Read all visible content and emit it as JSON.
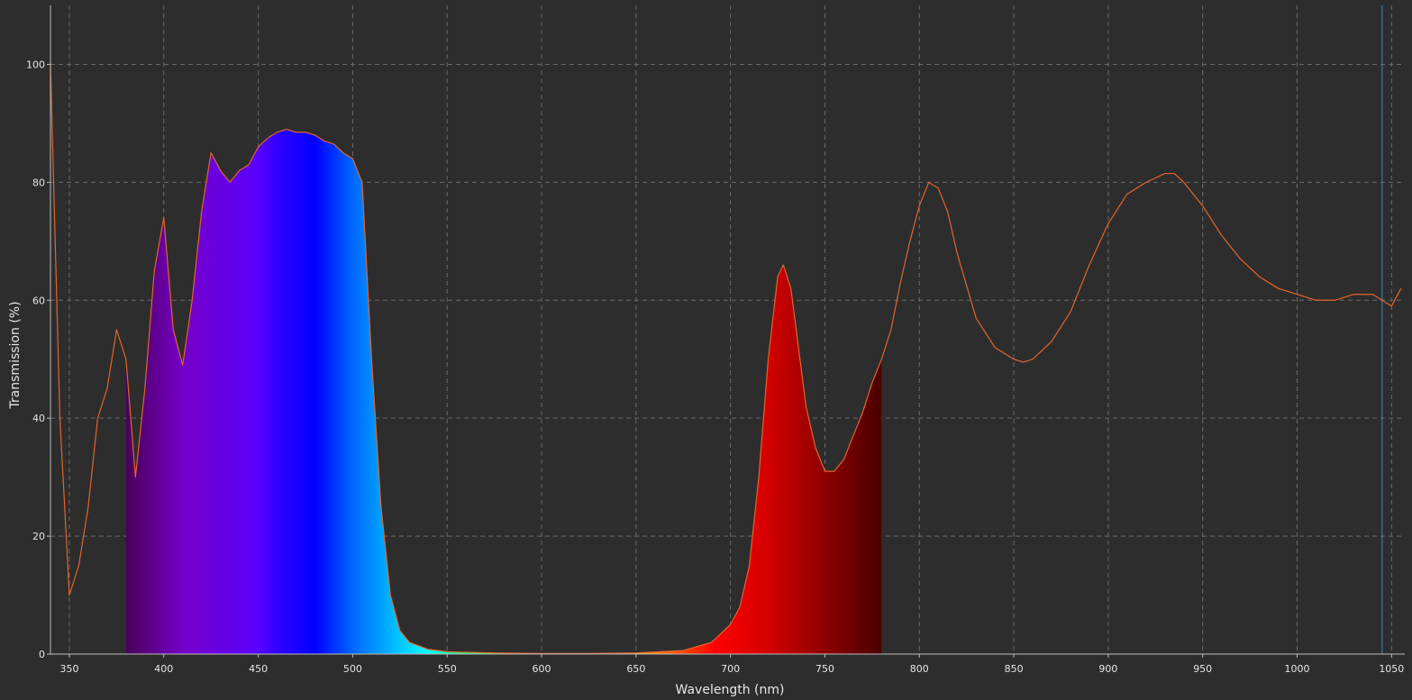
{
  "chart_data": {
    "type": "area",
    "title": "",
    "xlabel": "Wavelength (nm)",
    "ylabel": "Transmission (%)",
    "xlim": [
      340,
      1057
    ],
    "ylim": [
      0,
      110
    ],
    "x_ticks": [
      350,
      400,
      450,
      500,
      550,
      600,
      650,
      700,
      750,
      800,
      850,
      900,
      950,
      1000,
      1050
    ],
    "y_ticks": [
      0,
      20,
      40,
      60,
      80,
      100
    ],
    "grid": true,
    "visible_spectrum_fill": [
      380,
      780
    ],
    "marker_line_x": 1045,
    "series": [
      {
        "color": "#e2652c",
        "x": [
          340,
          345,
          350,
          355,
          360,
          365,
          370,
          375,
          380,
          385,
          390,
          395,
          400,
          405,
          410,
          415,
          420,
          425,
          430,
          435,
          440,
          445,
          450,
          455,
          460,
          465,
          470,
          475,
          480,
          485,
          490,
          495,
          500,
          505,
          510,
          515,
          520,
          525,
          530,
          540,
          550,
          575,
          600,
          625,
          650,
          675,
          690,
          700,
          705,
          710,
          715,
          720,
          725,
          728,
          732,
          736,
          740,
          745,
          750,
          755,
          760,
          765,
          770,
          775,
          780,
          785,
          790,
          795,
          800,
          805,
          810,
          815,
          820,
          830,
          840,
          850,
          855,
          860,
          870,
          880,
          890,
          900,
          910,
          920,
          930,
          935,
          940,
          950,
          960,
          970,
          980,
          990,
          1000,
          1010,
          1020,
          1030,
          1040,
          1045,
          1050,
          1055
        ],
        "values": [
          100,
          40,
          10,
          15,
          25,
          40,
          45,
          55,
          50,
          30,
          45,
          65,
          74,
          55,
          49,
          60,
          75,
          85,
          82,
          80,
          82,
          83,
          86,
          87.5,
          88.5,
          89,
          88.5,
          88.5,
          88,
          87,
          86.5,
          85,
          84,
          80,
          50,
          25,
          10,
          4,
          2,
          0.8,
          0.4,
          0.2,
          0.1,
          0.1,
          0.2,
          0.6,
          2,
          5,
          8,
          15,
          30,
          50,
          64,
          66,
          62,
          52,
          42,
          35,
          31,
          31,
          33,
          37,
          41,
          46,
          50,
          55,
          63,
          70,
          76,
          80,
          79,
          75,
          68,
          57,
          52,
          50,
          49.5,
          50,
          53,
          58,
          66,
          73,
          78,
          80,
          81.5,
          81.5,
          80,
          76,
          71,
          67,
          64,
          62,
          61,
          60,
          60,
          61,
          61,
          60,
          59,
          62
        ]
      }
    ]
  }
}
